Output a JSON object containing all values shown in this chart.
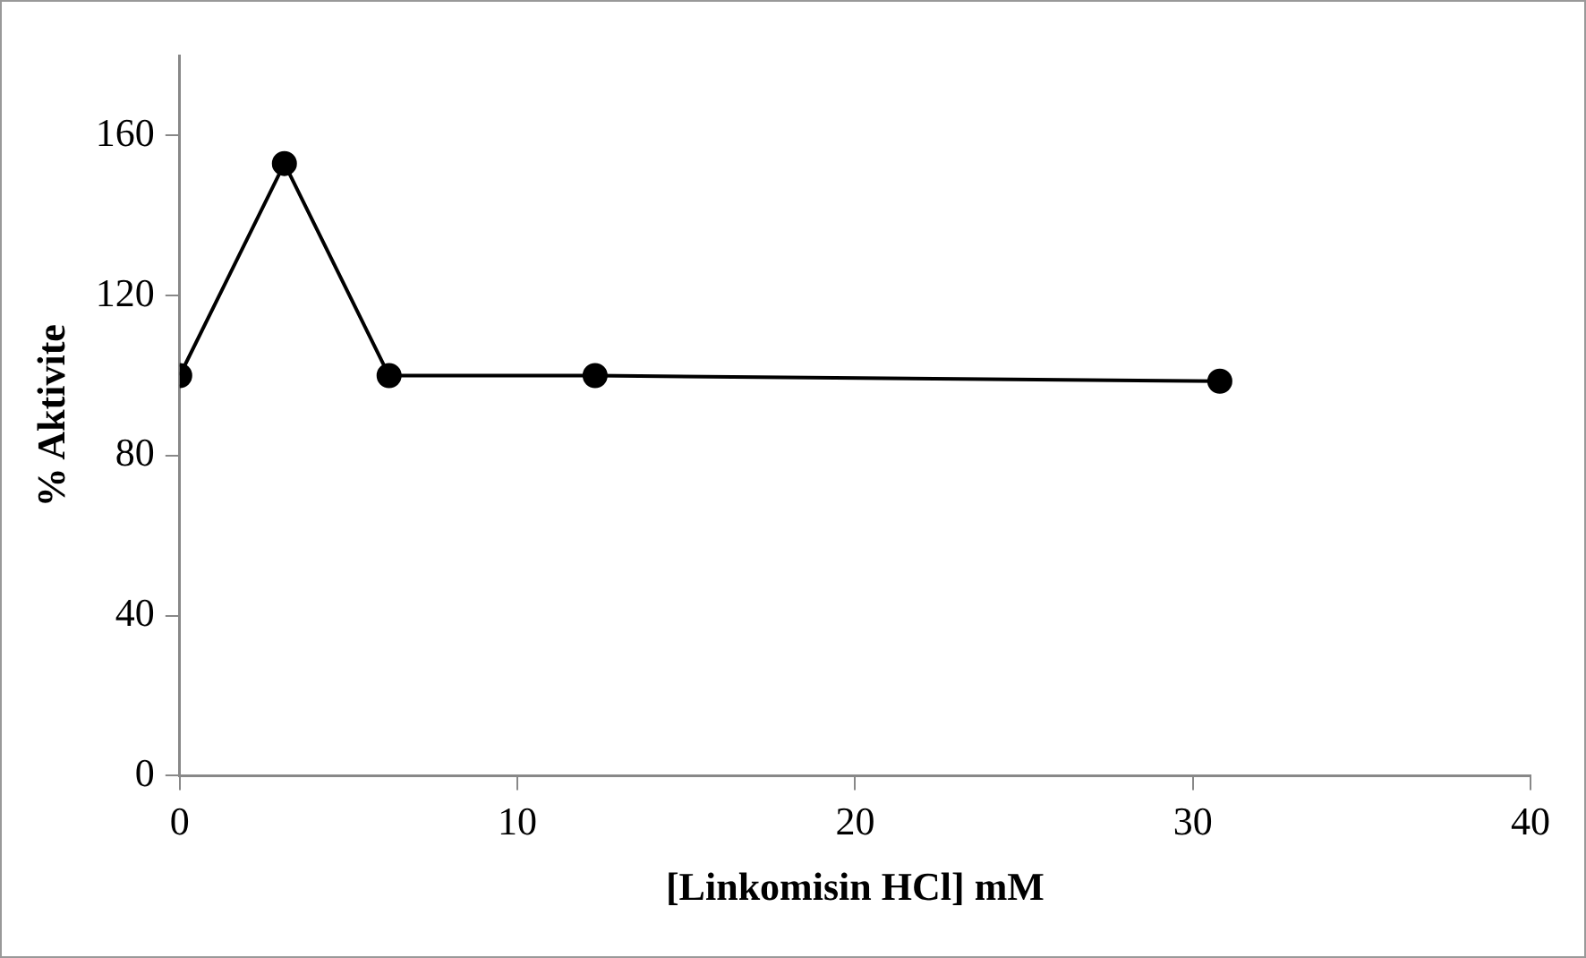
{
  "chart_data": {
    "type": "line",
    "xlabel": "[Linkomisin HCl] mM",
    "ylabel": "% Aktivite",
    "x": [
      0,
      3.1,
      6.2,
      12.3,
      30.8
    ],
    "series": [
      {
        "color": "#000000",
        "values": [
          100,
          153,
          100,
          100,
          98.6
        ]
      }
    ],
    "xlim": [
      0,
      40
    ],
    "xticks": [
      0,
      10,
      20,
      30,
      40
    ],
    "ylim": [
      0,
      180
    ],
    "yticks": [
      0,
      40,
      80,
      120,
      160
    ],
    "grid": false,
    "legend": false,
    "marker": "circle",
    "line_style": "solid"
  }
}
